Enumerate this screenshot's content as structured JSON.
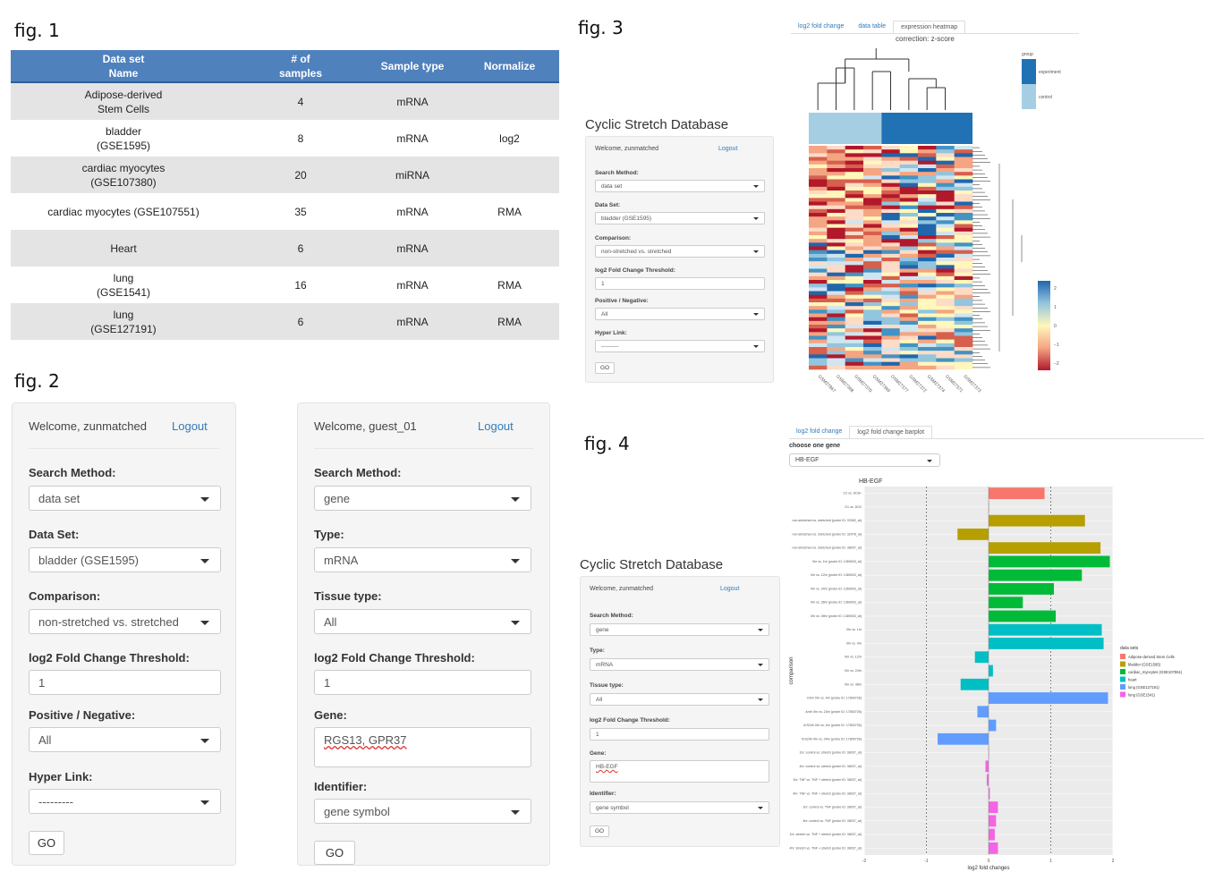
{
  "fig_labels": {
    "f1": "fig. 1",
    "f2": "fig. 2",
    "f3": "fig. 3",
    "f4": "fig. 4"
  },
  "table": {
    "headers": [
      "Data set\nName",
      "# of\nsamples",
      "Sample type",
      "Normalize"
    ],
    "rows": [
      [
        "Adipose-derived\nStem Cells",
        "4",
        "mRNA",
        ""
      ],
      [
        "bladder\n(GSE1595)",
        "8",
        "mRNA",
        "log2"
      ],
      [
        "cardiac myocytes\n(GSE107380)",
        "20",
        "miRNA",
        ""
      ],
      [
        "cardiac myocytes (GSE107551)",
        "35",
        "mRNA",
        "RMA"
      ],
      [
        "Heart",
        "6",
        "mRNA",
        ""
      ],
      [
        "lung\n(GSE1541)",
        "16",
        "mRNA",
        "RMA"
      ],
      [
        "lung\n(GSE127191)",
        "6",
        "mRNA",
        "RMA"
      ]
    ]
  },
  "panel_a": {
    "welcome": "Welcome, zunmatched",
    "logout": "Logout",
    "search_method_label": "Search Method:",
    "search_method": "data set",
    "dataset_label": "Data Set:",
    "dataset": "bladder (GSE1595)",
    "comparison_label": "Comparison:",
    "comparison": "non-stretched vs. stretched",
    "threshold_label": "log2 Fold Change Threshold:",
    "threshold": "1",
    "posneg_label": "Positive / Negative:",
    "posneg": "All",
    "hyper_label": "Hyper Link:",
    "hyper": "---------",
    "go": "GO"
  },
  "panel_b": {
    "welcome": "Welcome, guest_01",
    "logout": "Logout",
    "search_method_label": "Search Method:",
    "search_method": "gene",
    "type_label": "Type:",
    "type": "mRNA",
    "tissue_label": "Tissue type:",
    "tissue": "All",
    "threshold_label": "log2 Fold Change Threshold:",
    "threshold": "1",
    "gene_label": "Gene:",
    "gene": "RGS13, GPR37",
    "identifier_label": "Identifier:",
    "identifier": "gene symbol",
    "go": "GO"
  },
  "fig3": {
    "db_title": "Cyclic Stretch Database",
    "tabs": [
      "log2 fold change",
      "data table",
      "expression heatmap"
    ],
    "correction": "correction: z-score",
    "legend_title": "group",
    "legend_items": [
      "experiment",
      "control"
    ],
    "scale_ticks": [
      "2",
      "1",
      "0",
      "−1",
      "−2"
    ],
    "samples": [
      "GSM27867",
      "GSM27368",
      "GSM27370",
      "GSM27369",
      "GSM27377",
      "GSM27372",
      "GSM27374",
      "GSM27371",
      "GSM27373"
    ],
    "panel": {
      "welcome": "Welcome, zunmatched",
      "logout": "Logout",
      "search_method_label": "Search Method:",
      "search_method": "data set",
      "dataset_label": "Data Set:",
      "dataset": "bladder (GSE1595)",
      "comparison_label": "Comparison:",
      "comparison": "non-stretched vs. stretched",
      "threshold_label": "log2 Fold Change Threshold:",
      "threshold": "1",
      "posneg_label": "Positive / Negative:",
      "posneg": "All",
      "hyper_label": "Hyper Link:",
      "hyper": "---------",
      "go": "GO"
    },
    "colors": {
      "experiment": "#2171b5",
      "control": "#a6cee3"
    }
  },
  "fig4": {
    "db_title": "Cyclic Stretch Database",
    "tabs": [
      "log2 fold change",
      "log2 fold change barplot"
    ],
    "choose_label": "choose one gene",
    "gene_select": "HB-EGF",
    "panel": {
      "welcome": "Welcome, zunmatched",
      "logout": "Logout",
      "search_method_label": "Search Method:",
      "search_method": "gene",
      "type_label": "Type:",
      "type": "mRNA",
      "tissue_label": "Tissue type:",
      "tissue": "All",
      "threshold_label": "log2 Fold Change Threshold:",
      "threshold": "1",
      "gene_label": "Gene:",
      "gene": "HB-EGF",
      "identifier_label": "Identifier:",
      "identifier": "gene symbol",
      "go": "GO"
    }
  },
  "chart_data": {
    "type": "bar",
    "title": "HB-EGF",
    "xlabel": "log2 fold changes",
    "ylabel": "comparison",
    "xlim": [
      -2,
      2
    ],
    "xticks": [
      "-2",
      "-1",
      "0",
      "1",
      "2"
    ],
    "legend_title": "data sets",
    "legend": [
      {
        "name": "Adipose-derived Stem Cells",
        "color": "#f8766d"
      },
      {
        "name": "bladder (GSE1595)",
        "color": "#b79f00"
      },
      {
        "name": "cardiac_myocytes (GSE107551)",
        "color": "#00ba38"
      },
      {
        "name": "heart",
        "color": "#00bfc4"
      },
      {
        "name": "lung (GSE127191)",
        "color": "#619cff"
      },
      {
        "name": "lung (GSE1541)",
        "color": "#f564e3"
      }
    ],
    "bars": [
      {
        "label": "C2 vs. DC8+",
        "value": 0.9,
        "set": 0
      },
      {
        "label": "G1 vs. DG2",
        "value": 0,
        "set": 0
      },
      {
        "label": "non-stretched vs. stretched (probe ID: 33382_at)",
        "value": 1.55,
        "set": 1
      },
      {
        "label": "non-stretched vs. stretched (probe ID: 32478_at)",
        "value": -0.5,
        "set": 1
      },
      {
        "label": "non-stretched vs. stretched (probe ID: 38037_at)",
        "value": 1.8,
        "set": 1
      },
      {
        "label": "0hr vs. 1hr (probe ID: 1369003_at)",
        "value": 1.95,
        "set": 2
      },
      {
        "label": "0hr vs. 12hr (probe ID: 1369003_at)",
        "value": 1.5,
        "set": 2
      },
      {
        "label": "0hr vs. 24hr (probe ID: 1369003_at)",
        "value": 1.05,
        "set": 2
      },
      {
        "label": "0hr vs. 36hr (probe ID: 1369003_at)",
        "value": 0.55,
        "set": 2
      },
      {
        "label": "0hr vs. 48hr (probe ID: 1369003_at)",
        "value": 1.08,
        "set": 2
      },
      {
        "label": "0hr vs. 1hr",
        "value": 1.82,
        "set": 3
      },
      {
        "label": "0hr vs. 4hr",
        "value": 1.85,
        "set": 3
      },
      {
        "label": "0hr vs. 12hr",
        "value": -0.22,
        "set": 3
      },
      {
        "label": "0hr vs. 24hr",
        "value": 0.07,
        "set": 3
      },
      {
        "label": "0hr vs. 48hr",
        "value": -0.45,
        "set": 3
      },
      {
        "label": "IOHr 0hr vs. 4hr (probe ID: 17800726)",
        "value": 1.92,
        "set": 4
      },
      {
        "label": "Amfr 0hr vs. 24hr (probe ID: 17800726)",
        "value": -0.18,
        "set": 4
      },
      {
        "label": "XrS24h 0hr vs. 4hr (probe ID: 17800726)",
        "value": 0.12,
        "set": 4
      },
      {
        "label": "XrS24h 0hr vs. 24hr (probe ID: 17800726)",
        "value": -0.82,
        "set": 4
      },
      {
        "label": "1hr: control vs. stretch (probe ID: 38037_at)",
        "value": 0,
        "set": 5
      },
      {
        "label": "4hr: control vs. stretch (probe ID: 38037_at)",
        "value": -0.05,
        "set": 5
      },
      {
        "label": "1hr: TNF vs. TNF + stretch (probe ID: 38037_at)",
        "value": -0.03,
        "set": 5
      },
      {
        "label": "4hr: TNF vs. TNF + stretch (probe ID: 38037_at)",
        "value": 0.02,
        "set": 5
      },
      {
        "label": "1hr: control vs. TNF (probe ID: 38037_at)",
        "value": 0.15,
        "set": 5
      },
      {
        "label": "4hr: control vs. TNF (probe ID: 38037_at)",
        "value": 0.12,
        "set": 5
      },
      {
        "label": "1hr: stretch vs. TNF + stretch (probe ID: 38037_at)",
        "value": 0.1,
        "set": 5
      },
      {
        "label": "4hr: stretch vs. TNF + stretch (probe ID: 38037_at)",
        "value": 0.15,
        "set": 5
      }
    ]
  }
}
